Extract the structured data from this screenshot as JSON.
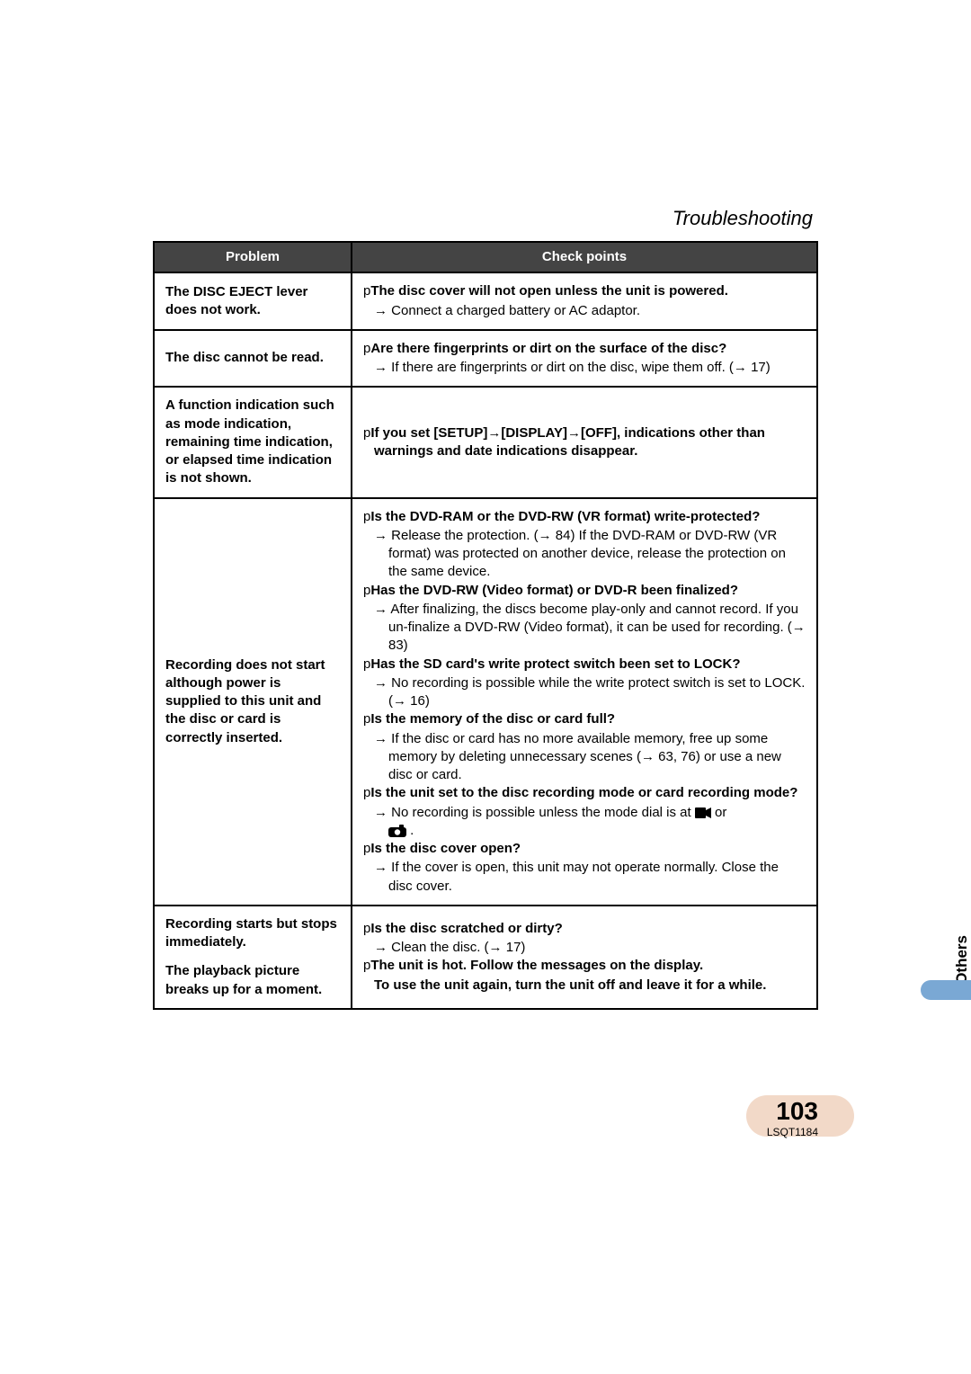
{
  "section_title": "Troubleshooting",
  "side_label": "Others",
  "page_number": "103",
  "doc_code": "LSQT1184",
  "colors": {
    "header_bg": "#444444",
    "header_text": "#ffffff",
    "border": "#000000",
    "tab_block": "#7aa8d4",
    "page_pill": "#f2d9c8",
    "text": "#000000"
  },
  "headers": {
    "problem": "Problem",
    "check": "Check points"
  },
  "rows": [
    {
      "problem": "The DISC EJECT lever does not work.",
      "items": [
        {
          "bold": "The disc cover will not open unless the unit is powered.",
          "subs": [
            "Connect a charged battery or AC adaptor."
          ]
        }
      ]
    },
    {
      "problem": "The disc cannot be read.",
      "items": [
        {
          "bold": "Are there fingerprints or dirt on the surface of the disc?",
          "subs": [
            "If there are fingerprints or dirt on the disc, wipe them off. (→ 17)"
          ]
        }
      ]
    },
    {
      "problem": "A function indication such as mode indication, remaining time indication, or elapsed time indication is not shown.",
      "items": [
        {
          "bold": "If you set [SETUP]→[DISPLAY]→[OFF], indications other than warnings and date indications disappear.",
          "subs": []
        }
      ]
    },
    {
      "problem": "Recording does not start although power is supplied to this unit and the disc or card is correctly inserted.",
      "items": [
        {
          "bold": "Is the DVD-RAM or the DVD-RW (VR format) write-protected?",
          "subs": [
            "Release the protection. (→ 84) If the DVD-RAM or DVD-RW (VR format) was protected on another device, release the protection on the same device."
          ]
        },
        {
          "bold": "Has the DVD-RW (Video format) or DVD-R been finalized?",
          "subs": [
            "After finalizing, the discs become play-only and cannot record. If you un-finalize a DVD-RW (Video format), it can be used for recording. (→ 83)"
          ]
        },
        {
          "bold": "Has the SD card's write protect switch been set to LOCK?",
          "subs": [
            "No recording is possible while the write protect switch is set to LOCK. (→ 16)"
          ]
        },
        {
          "bold": "Is the memory of the disc or card full?",
          "subs": [
            "If the disc or card has no more available memory, free up some memory by deleting unnecessary scenes (→ 63, 76) or use a new disc or card."
          ]
        },
        {
          "bold": "Is the unit set to the disc recording mode or card recording mode?",
          "subs": [],
          "special": "mode_dial"
        },
        {
          "bold": "Is the disc cover open?",
          "subs": [
            "If the cover is open, this unit may not operate normally. Close the disc cover."
          ]
        }
      ]
    },
    {
      "problem_multi": [
        "Recording starts but stops immediately.",
        "The playback picture breaks up for a moment."
      ],
      "items": [
        {
          "bold": "Is the disc scratched or dirty?",
          "subs": [
            "Clean the disc. (→ 17)"
          ]
        },
        {
          "bold": "The unit is hot. Follow the messages on the display.",
          "subs": [],
          "extra_bold": "To use the unit again, turn the unit off and leave it for a while."
        }
      ]
    }
  ],
  "mode_dial_text": {
    "prefix": "No recording is possible unless the mode dial is at ",
    "mid": " or ",
    "suffix": " ."
  }
}
